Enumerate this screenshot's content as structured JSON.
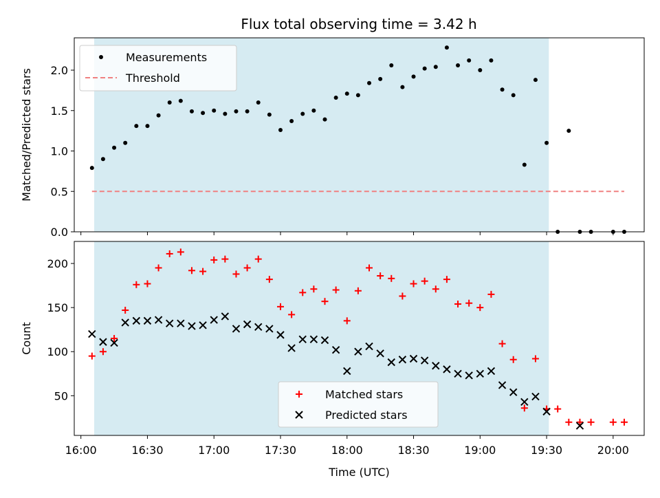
{
  "chart_data": {
    "title": "Flux total observing time = 3.42 h",
    "xlabel": "Time (UTC)",
    "x_ticks": [
      "16:00",
      "16:30",
      "17:00",
      "17:30",
      "18:00",
      "18:30",
      "19:00",
      "19:30",
      "20:00"
    ],
    "x_tick_minutes": [
      960,
      990,
      1020,
      1050,
      1080,
      1110,
      1140,
      1170,
      1200
    ],
    "xlim_minutes": [
      957,
      1214
    ],
    "observing_window_minutes": [
      966,
      1171
    ],
    "window_color": "#add8e6",
    "panels": [
      {
        "type": "scatter",
        "ylabel": "Matched/Predicted stars",
        "ylim": [
          0,
          2.4
        ],
        "y_ticks": [
          0.0,
          0.5,
          1.0,
          1.5,
          2.0
        ],
        "y_tick_labels": [
          "0.0",
          "0.5",
          "1.0",
          "1.5",
          "2.0"
        ],
        "legend_position": "top-left",
        "series": [
          {
            "name": "Measurements",
            "color": "#000000",
            "marker": "dot",
            "x": [
              "16:05",
              "16:10",
              "16:15",
              "16:20",
              "16:25",
              "16:30",
              "16:35",
              "16:40",
              "16:45",
              "16:50",
              "16:55",
              "17:00",
              "17:05",
              "17:10",
              "17:15",
              "17:20",
              "17:25",
              "17:30",
              "17:35",
              "17:40",
              "17:45",
              "17:50",
              "17:55",
              "18:00",
              "18:05",
              "18:10",
              "18:15",
              "18:20",
              "18:25",
              "18:30",
              "18:35",
              "18:40",
              "18:45",
              "18:50",
              "18:55",
              "19:00",
              "19:05",
              "19:10",
              "19:15",
              "19:20",
              "19:25",
              "19:30",
              "19:35",
              "19:40",
              "19:45",
              "19:50",
              "20:00",
              "20:05"
            ],
            "y": [
              0.79,
              0.9,
              1.04,
              1.1,
              1.31,
              1.31,
              1.44,
              1.6,
              1.62,
              1.49,
              1.47,
              1.5,
              1.46,
              1.49,
              1.49,
              1.6,
              1.45,
              1.26,
              1.37,
              1.46,
              1.5,
              1.39,
              1.66,
              1.71,
              1.69,
              1.84,
              1.89,
              2.06,
              1.79,
              1.92,
              2.02,
              2.04,
              2.28,
              2.06,
              2.12,
              2.0,
              2.12,
              1.76,
              1.69,
              0.83,
              1.88,
              1.1,
              0.0,
              1.25,
              0.0,
              0.0,
              0.0,
              0.0
            ]
          },
          {
            "name": "Threshold",
            "color": "#f08080",
            "style": "dashed",
            "x": [
              "16:05",
              "20:05"
            ],
            "y": [
              0.5,
              0.5
            ]
          }
        ]
      },
      {
        "type": "scatter",
        "ylabel": "Count",
        "ylim": [
          5,
          225
        ],
        "y_ticks": [
          50,
          100,
          150,
          200
        ],
        "y_tick_labels": [
          "50",
          "100",
          "150",
          "200"
        ],
        "legend_position": "bottom-center",
        "series": [
          {
            "name": "Matched stars",
            "color": "#ff0000",
            "marker": "plus",
            "x": [
              "16:05",
              "16:10",
              "16:15",
              "16:20",
              "16:25",
              "16:30",
              "16:35",
              "16:40",
              "16:45",
              "16:50",
              "16:55",
              "17:00",
              "17:05",
              "17:10",
              "17:15",
              "17:20",
              "17:25",
              "17:30",
              "17:35",
              "17:40",
              "17:45",
              "17:50",
              "17:55",
              "18:00",
              "18:05",
              "18:10",
              "18:15",
              "18:20",
              "18:25",
              "18:30",
              "18:35",
              "18:40",
              "18:45",
              "18:50",
              "18:55",
              "19:00",
              "19:05",
              "19:10",
              "19:15",
              "19:20",
              "19:25",
              "19:30",
              "19:35",
              "19:40",
              "19:45",
              "19:50",
              "20:00",
              "20:05"
            ],
            "y": [
              95,
              100,
              115,
              147,
              176,
              177,
              195,
              211,
              213,
              192,
              191,
              204,
              205,
              188,
              195,
              205,
              182,
              151,
              142,
              167,
              171,
              157,
              170,
              135,
              169,
              195,
              186,
              183,
              163,
              177,
              180,
              171,
              182,
              154,
              155,
              150,
              165,
              109,
              91,
              36,
              92,
              35,
              35,
              20,
              20,
              20,
              20,
              20
            ]
          },
          {
            "name": "Predicted stars",
            "color": "#000000",
            "marker": "x",
            "x": [
              "16:05",
              "16:10",
              "16:15",
              "16:20",
              "16:25",
              "16:30",
              "16:35",
              "16:40",
              "16:45",
              "16:50",
              "16:55",
              "17:00",
              "17:05",
              "17:10",
              "17:15",
              "17:20",
              "17:25",
              "17:30",
              "17:35",
              "17:40",
              "17:45",
              "17:50",
              "17:55",
              "18:00",
              "18:05",
              "18:10",
              "18:15",
              "18:20",
              "18:25",
              "18:30",
              "18:35",
              "18:40",
              "18:45",
              "18:50",
              "18:55",
              "19:00",
              "19:05",
              "19:10",
              "19:15",
              "19:20",
              "19:25",
              "19:30",
              "19:45"
            ],
            "y": [
              120,
              111,
              110,
              133,
              135,
              135,
              136,
              132,
              132,
              129,
              130,
              136,
              140,
              126,
              131,
              128,
              126,
              119,
              104,
              114,
              114,
              113,
              102,
              78,
              100,
              106,
              98,
              88,
              91,
              92,
              90,
              84,
              80,
              75,
              73,
              75,
              78,
              62,
              54,
              43,
              49,
              32,
              16
            ]
          }
        ]
      }
    ]
  }
}
